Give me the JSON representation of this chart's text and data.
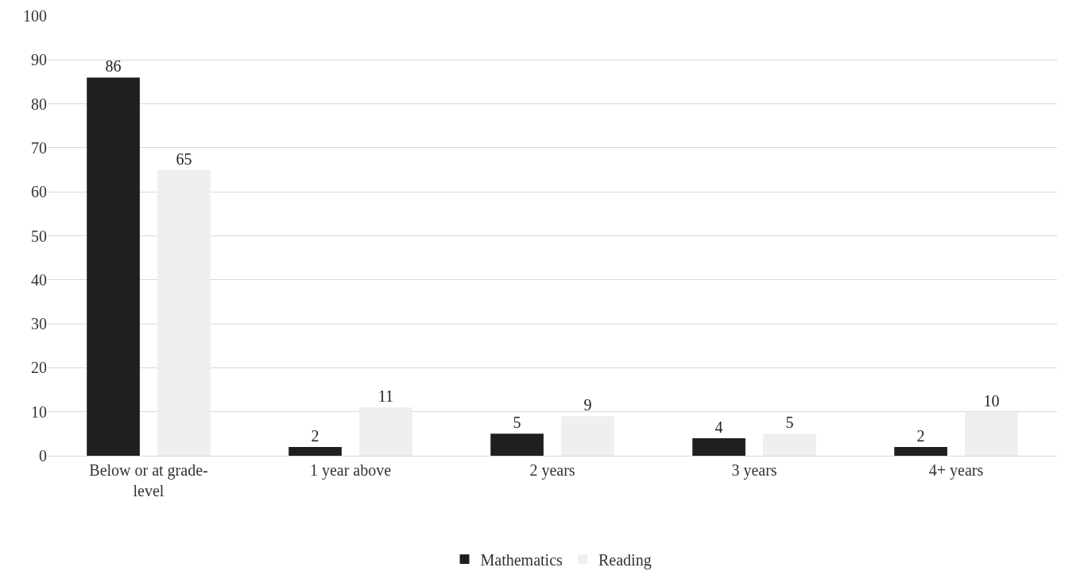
{
  "chart_data": {
    "type": "bar",
    "categories": [
      "Below or at grade-level",
      "1 year above",
      "2 years",
      "3 years",
      "4+ years"
    ],
    "series": [
      {
        "name": "Mathematics",
        "color": "#1f1f1f",
        "values": [
          86,
          2,
          5,
          4,
          2
        ]
      },
      {
        "name": "Reading",
        "color": "#efefef",
        "values": [
          65,
          11,
          9,
          5,
          10
        ]
      }
    ],
    "ylim": [
      0,
      100
    ],
    "yticks": [
      0,
      10,
      20,
      30,
      40,
      50,
      60,
      70,
      80,
      90,
      100
    ],
    "grid": "y",
    "legend": "bottom",
    "data_labels": true
  }
}
